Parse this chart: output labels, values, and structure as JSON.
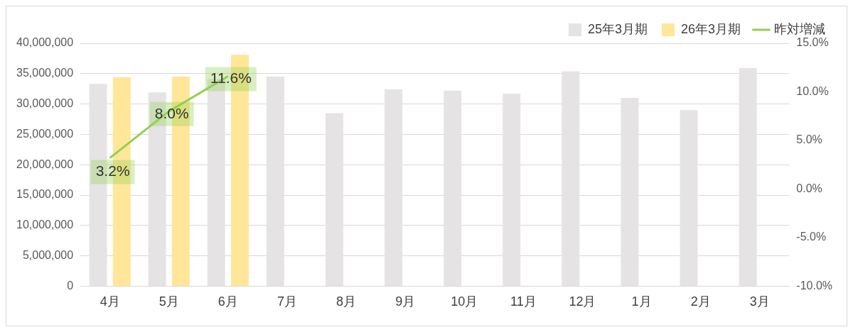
{
  "chart_data": {
    "type": "bar",
    "categories": [
      "4月",
      "5月",
      "6月",
      "7月",
      "8月",
      "9月",
      "10月",
      "11月",
      "12月",
      "1月",
      "2月",
      "3月"
    ],
    "series": [
      {
        "name": "25年3月期",
        "color": "#e5e3e4",
        "values": [
          33300000,
          31900000,
          34100000,
          34500000,
          28500000,
          32400000,
          32200000,
          31700000,
          35400000,
          31000000,
          29000000,
          35900000
        ]
      },
      {
        "name": "26年3月期",
        "color": "#ffe699",
        "values": [
          34400000,
          34500000,
          38100000,
          null,
          null,
          null,
          null,
          null,
          null,
          null,
          null,
          null
        ]
      },
      {
        "name": "昨対増減",
        "type": "line",
        "axis": "y2",
        "color": "#92d050",
        "values": [
          3.2,
          8.0,
          11.6,
          null,
          null,
          null,
          null,
          null,
          null,
          null,
          null,
          null
        ],
        "value_labels": [
          "3.2%",
          "8.0%",
          "11.6%",
          null,
          null,
          null,
          null,
          null,
          null,
          null,
          null,
          null
        ]
      }
    ],
    "ylim": [
      0,
      40000000
    ],
    "yticks": [
      {
        "value": 0,
        "label": "0"
      },
      {
        "value": 5000000,
        "label": "5,000,000"
      },
      {
        "value": 10000000,
        "label": "10,000,000"
      },
      {
        "value": 15000000,
        "label": "15,000,000"
      },
      {
        "value": 20000000,
        "label": "20,000,000"
      },
      {
        "value": 25000000,
        "label": "25,000,000"
      },
      {
        "value": 30000000,
        "label": "30,000,000"
      },
      {
        "value": 35000000,
        "label": "35,000,000"
      },
      {
        "value": 40000000,
        "label": "40,000,000"
      }
    ],
    "y2lim": [
      -10,
      15
    ],
    "y2ticks": [
      {
        "value": -10,
        "label": "-10.0%"
      },
      {
        "value": -5,
        "label": "-5.0%"
      },
      {
        "value": 0,
        "label": "0.0%"
      },
      {
        "value": 5,
        "label": "5.0%"
      },
      {
        "value": 10,
        "label": "10.0%"
      },
      {
        "value": 15,
        "label": "15.0%"
      }
    ],
    "grid": "y",
    "legend": "top right",
    "marker": "none"
  }
}
